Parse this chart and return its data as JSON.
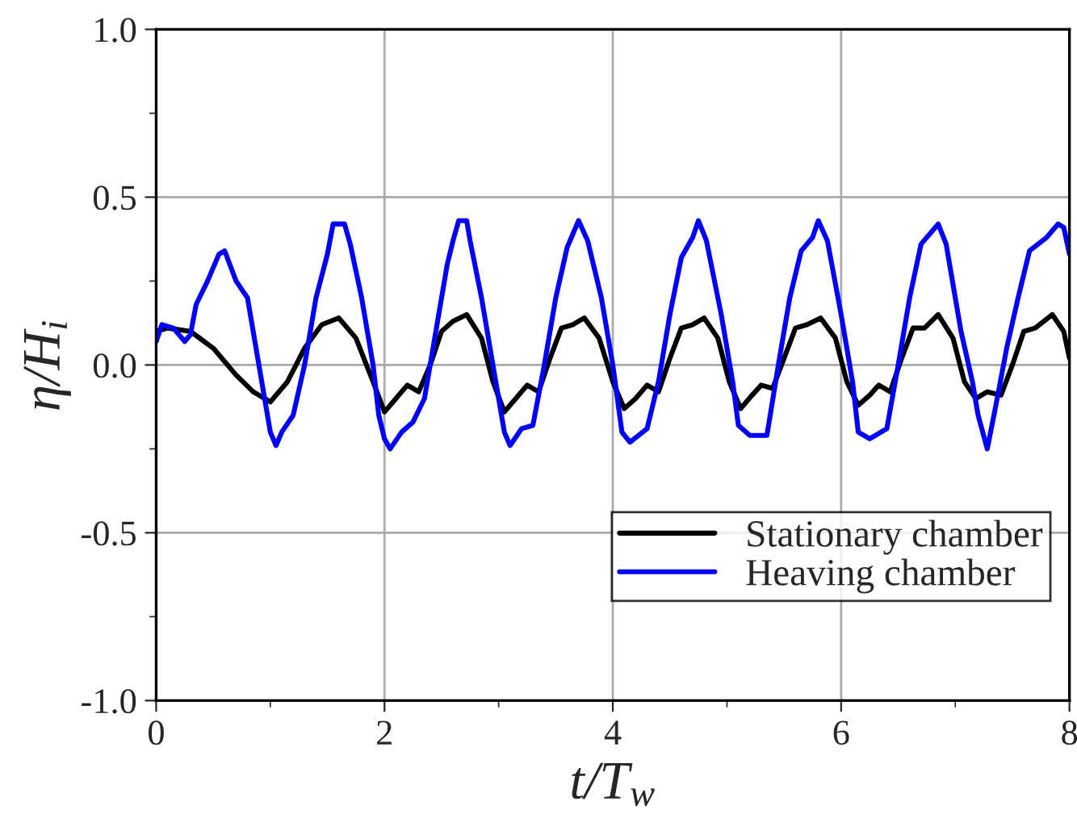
{
  "chart_data": {
    "type": "line",
    "xlabel": "t/T$_{w}$",
    "ylabel": "η/H$_{i}$",
    "xlim": [
      0,
      8
    ],
    "ylim": [
      -1.0,
      1.0
    ],
    "xticks": [
      0,
      {
        "value": 1,
        "label": null
      },
      2,
      {
        "value": 3,
        "label": null
      },
      4,
      {
        "value": 5,
        "label": null
      },
      6,
      {
        "value": 7,
        "label": null
      },
      8
    ],
    "yticks": [
      {
        "value": -1.0,
        "label": "-1.0"
      },
      {
        "value": -0.75,
        "label": null
      },
      {
        "value": -0.5,
        "label": "-0.5"
      },
      {
        "value": -0.25,
        "label": null
      },
      {
        "value": 0.0,
        "label": "0.0"
      },
      {
        "value": 0.25,
        "label": null
      },
      {
        "value": 0.5,
        "label": "0.5"
      },
      {
        "value": 0.75,
        "label": null
      },
      {
        "value": 1.0,
        "label": "1.0"
      }
    ],
    "grid": true,
    "legend": "bottom right",
    "line_style": "solid",
    "marker": "none",
    "series": [
      {
        "name": "Stationary chamber",
        "color": "#000000",
        "x": [
          0,
          0.1,
          0.3,
          0.5,
          0.7,
          0.85,
          1.0,
          1.15,
          1.3,
          1.45,
          1.6,
          1.75,
          1.9,
          2.0,
          2.1,
          2.2,
          2.3,
          2.4,
          2.5,
          2.6,
          2.72,
          2.85,
          2.95,
          3.05,
          3.15,
          3.25,
          3.35,
          3.45,
          3.55,
          3.65,
          3.75,
          3.88,
          4.0,
          4.1,
          4.2,
          4.3,
          4.4,
          4.5,
          4.6,
          4.7,
          4.8,
          4.92,
          5.02,
          5.12,
          5.22,
          5.3,
          5.4,
          5.5,
          5.6,
          5.7,
          5.82,
          5.95,
          6.05,
          6.15,
          6.25,
          6.33,
          6.43,
          6.53,
          6.63,
          6.73,
          6.85,
          6.98,
          7.08,
          7.18,
          7.28,
          7.4,
          7.5,
          7.6,
          7.7,
          7.85,
          7.95,
          8.0
        ],
        "values": [
          0.1,
          0.11,
          0.1,
          0.05,
          -0.03,
          -0.08,
          -0.11,
          -0.05,
          0.05,
          0.12,
          0.14,
          0.08,
          -0.05,
          -0.14,
          -0.1,
          -0.06,
          -0.08,
          0.0,
          0.1,
          0.13,
          0.15,
          0.08,
          -0.05,
          -0.14,
          -0.1,
          -0.06,
          -0.08,
          0.02,
          0.11,
          0.12,
          0.14,
          0.08,
          -0.05,
          -0.13,
          -0.1,
          -0.06,
          -0.08,
          0.02,
          0.11,
          0.12,
          0.14,
          0.08,
          -0.05,
          -0.13,
          -0.09,
          -0.06,
          -0.07,
          0.02,
          0.11,
          0.12,
          0.14,
          0.08,
          -0.05,
          -0.12,
          -0.09,
          -0.06,
          -0.08,
          0.02,
          0.11,
          0.11,
          0.15,
          0.08,
          -0.05,
          -0.1,
          -0.08,
          -0.09,
          0.0,
          0.1,
          0.11,
          0.15,
          0.1,
          0.02
        ]
      },
      {
        "name": "Heaving chamber",
        "color": "#0000ff",
        "x": [
          0,
          0.05,
          0.15,
          0.25,
          0.3,
          0.35,
          0.45,
          0.55,
          0.6,
          0.7,
          0.8,
          0.9,
          0.95,
          1.0,
          1.05,
          1.1,
          1.2,
          1.3,
          1.4,
          1.5,
          1.55,
          1.65,
          1.7,
          1.8,
          1.9,
          1.95,
          2.0,
          2.05,
          2.15,
          2.25,
          2.35,
          2.45,
          2.55,
          2.6,
          2.65,
          2.72,
          2.75,
          2.85,
          2.95,
          3.05,
          3.1,
          3.2,
          3.3,
          3.4,
          3.5,
          3.6,
          3.7,
          3.78,
          3.9,
          4.0,
          4.08,
          4.15,
          4.3,
          4.4,
          4.5,
          4.6,
          4.7,
          4.75,
          4.82,
          4.95,
          5.05,
          5.1,
          5.2,
          5.35,
          5.45,
          5.55,
          5.65,
          5.75,
          5.8,
          5.88,
          6.0,
          6.1,
          6.15,
          6.25,
          6.4,
          6.5,
          6.6,
          6.7,
          6.85,
          6.92,
          7.05,
          7.15,
          7.2,
          7.28,
          7.35,
          7.45,
          7.55,
          7.65,
          7.8,
          7.9,
          7.95,
          8.0
        ],
        "values": [
          0.07,
          0.12,
          0.11,
          0.07,
          0.09,
          0.18,
          0.25,
          0.33,
          0.34,
          0.25,
          0.2,
          0.0,
          -0.1,
          -0.2,
          -0.24,
          -0.2,
          -0.15,
          0.0,
          0.2,
          0.33,
          0.42,
          0.42,
          0.36,
          0.2,
          0.0,
          -0.15,
          -0.22,
          -0.25,
          -0.2,
          -0.17,
          -0.1,
          0.1,
          0.3,
          0.37,
          0.43,
          0.43,
          0.37,
          0.2,
          0.0,
          -0.2,
          -0.24,
          -0.19,
          -0.18,
          0.0,
          0.2,
          0.35,
          0.43,
          0.37,
          0.2,
          0.0,
          -0.2,
          -0.23,
          -0.19,
          -0.05,
          0.15,
          0.32,
          0.38,
          0.43,
          0.37,
          0.15,
          -0.05,
          -0.18,
          -0.21,
          -0.21,
          0.0,
          0.2,
          0.34,
          0.38,
          0.43,
          0.37,
          0.15,
          -0.05,
          -0.2,
          -0.22,
          -0.19,
          0.0,
          0.2,
          0.36,
          0.42,
          0.36,
          0.1,
          -0.05,
          -0.15,
          -0.25,
          -0.13,
          0.05,
          0.2,
          0.34,
          0.38,
          0.42,
          0.41,
          0.33
        ]
      }
    ]
  }
}
